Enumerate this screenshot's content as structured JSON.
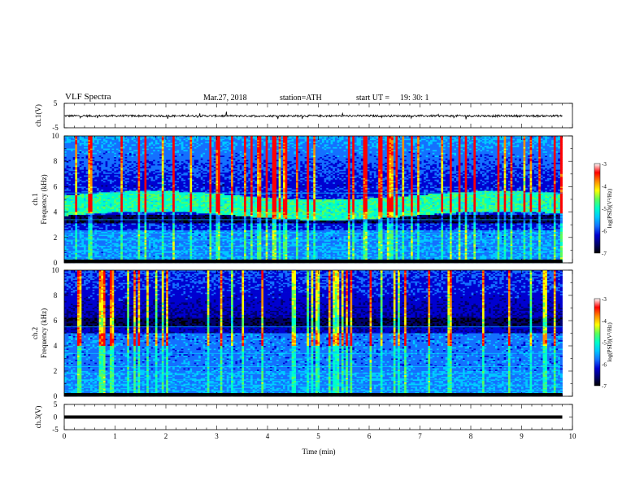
{
  "header": {
    "title": "VLF  Spectra",
    "date": "Mar.27,  2018",
    "station": "station=ATH",
    "start_label": "start  UT  =",
    "start_time": "19: 30: 1"
  },
  "chart_data": [
    {
      "type": "line",
      "panel": "ch1",
      "ylabel": "ch.1(V)",
      "xlim": [
        0,
        10
      ],
      "ylim": [
        -5,
        5
      ],
      "yticks": [
        "5",
        "-5"
      ],
      "description_values": {
        "mean": 0,
        "noise_amplitude": 0.6,
        "end_time_min": 9.8
      }
    },
    {
      "type": "heatmap",
      "panel": "ch1-spectrogram",
      "ylabel": "ch.1\nFrequency  (kHz)",
      "xlim": [
        0,
        10
      ],
      "ylim": [
        0,
        10
      ],
      "yticks": [
        "0",
        "2",
        "4",
        "6",
        "8",
        "10"
      ],
      "end_time_min": 9.8,
      "features": {
        "hiss_band_khz": [
          3.8,
          5.6
        ],
        "low_band_khz": [
          0.2,
          2.6
        ]
      },
      "colorbar": {
        "label": "log(PSD)(V²/Hz)",
        "range": [
          -7,
          -3
        ],
        "ticks": [
          "-3",
          "-4",
          "-5",
          "-6",
          "-7"
        ]
      }
    },
    {
      "type": "heatmap",
      "panel": "ch2-spectrogram",
      "ylabel": "ch.2\nFrequency  (kHz)",
      "xlim": [
        0,
        10
      ],
      "ylim": [
        0,
        10
      ],
      "yticks": [
        "0",
        "2",
        "4",
        "6",
        "8",
        "10"
      ],
      "end_time_min": 9.8,
      "colorbar": {
        "label": "log(PSD)(V²/Hz)",
        "range": [
          -7,
          -3
        ],
        "ticks": [
          "-3",
          "-4",
          "-5",
          "-6",
          "-7"
        ]
      }
    },
    {
      "type": "line",
      "panel": "ch3",
      "ylabel": "ch.3(V)",
      "xlabel": "Time  (min)",
      "xlim": [
        0,
        10
      ],
      "ylim": [
        -5,
        5
      ],
      "yticks": [
        "5",
        "0",
        "-5"
      ],
      "xticks": [
        "0",
        "1",
        "2",
        "3",
        "4",
        "5",
        "6",
        "7",
        "8",
        "9",
        "10"
      ],
      "description_values": {
        "mean": 0,
        "amplitude": 0,
        "end_time_min": 9.8
      }
    }
  ],
  "colors": {
    "scale": [
      "#000000",
      "#00006e",
      "#0000d0",
      "#1470ff",
      "#00c8ff",
      "#00ffc8",
      "#5aff5a",
      "#ffff00",
      "#ff8c00",
      "#ff0000",
      "#ffffff"
    ]
  }
}
